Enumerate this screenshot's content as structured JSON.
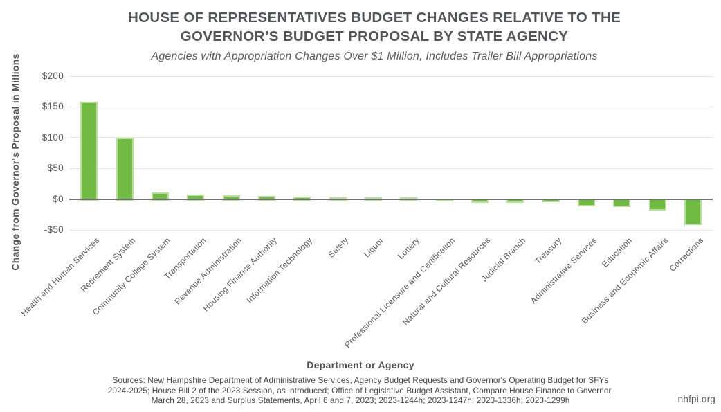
{
  "chart_data": {
    "type": "bar",
    "title": "HOUSE OF REPRESENTATIVES BUDGET CHANGES RELATIVE TO THE GOVERNOR’S BUDGET PROPOSAL BY STATE AGENCY",
    "title_lines": [
      "HOUSE OF REPRESENTATIVES BUDGET CHANGES RELATIVE TO THE",
      "GOVERNOR’S BUDGET PROPOSAL BY STATE AGENCY"
    ],
    "subtitle": "Agencies with Appropriation Changes Over $1 Million, Includes Trailer Bill Appropriations",
    "xlabel": "Department or Agency",
    "ylabel": "Change from Governor's Proposal in Millions",
    "ylim": [
      -50,
      200
    ],
    "grid": true,
    "legend": "none",
    "bar_color": "#71bb44",
    "bar_border_color": "#bade9d",
    "yticks": [
      {
        "label": "$200",
        "value": 200
      },
      {
        "label": "$150",
        "value": 150
      },
      {
        "label": "$100",
        "value": 100
      },
      {
        "label": "$50",
        "value": 50
      },
      {
        "label": "$0",
        "value": 0
      },
      {
        "label": "-$50",
        "value": -50
      }
    ],
    "categories": [
      "Health and Human Services",
      "Retirement System",
      "Community College System",
      "Transportation",
      "Revenue Administration",
      "Housing Finance Authority",
      "Information Technology",
      "Safety",
      "Liquor",
      "Lottery",
      "Professional Licensure and Certification",
      "Natural and Cultural Resources",
      "Judicial Branch",
      "Treasury",
      "Administrative Services",
      "Education",
      "Business and Economic Affairs",
      "Corrections"
    ],
    "values": [
      158,
      100,
      11,
      7.5,
      6,
      5,
      4,
      2.5,
      2.5,
      2.5,
      -3,
      -5,
      -4.5,
      -4,
      -11,
      -12,
      -17,
      -41
    ]
  },
  "footer": {
    "sources_lines": [
      "Sources: New Hampshire Department of Administrative Services, Agency Budget Requests and Governor's Operating Budget for SFYs",
      "2024-2025; House Bill 2 of the 2023 Session, as introduced; Office of Legislative Budget Assistant, Compare House Finance to Governor,",
      "March 28, 2023 and Surplus Statements, April 6 and 7, 2023; 2023-1244h; 2023-1247h; 2023-1336h; 2023-1299h"
    ],
    "site": "nhfpi.org"
  }
}
